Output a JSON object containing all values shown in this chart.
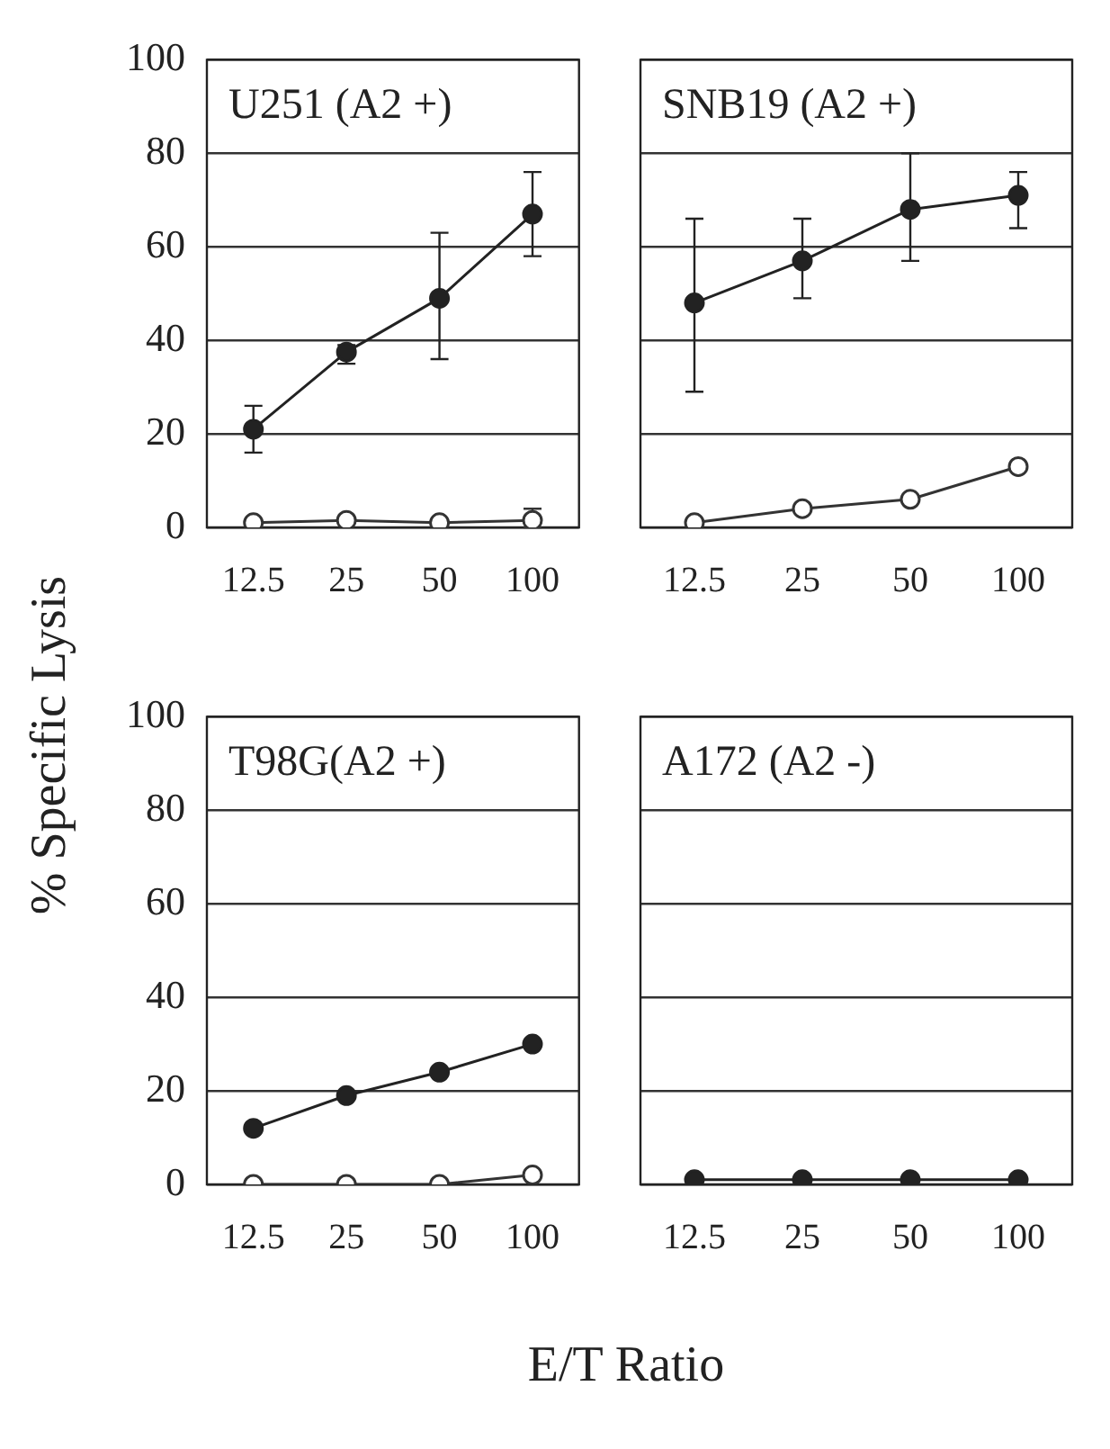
{
  "chart_data": [
    {
      "type": "line",
      "title": "U251 (A2 +)",
      "ylabel": "% Specific Lysis",
      "categories": [
        "12.5",
        "25",
        "50",
        "100"
      ],
      "ylim": [
        0,
        100
      ],
      "yticks": [
        0,
        20,
        40,
        60,
        80,
        100
      ],
      "grid": "y",
      "legend": false,
      "marker": "circle",
      "line_style": "solid",
      "series": [
        {
          "color": "#222222",
          "values": [
            21,
            37.5,
            49,
            67
          ],
          "errors": [
            [
              16,
              26
            ],
            [
              35,
              39
            ],
            [
              36,
              63
            ],
            [
              58,
              76
            ]
          ]
        },
        {
          "color": "#333333",
          "values": [
            1,
            1.5,
            1,
            1.5
          ],
          "errors": [
            null,
            null,
            null,
            [
              0,
              4
            ]
          ]
        }
      ]
    },
    {
      "type": "line",
      "title": "SNB19 (A2 +)",
      "categories": [
        "12.5",
        "25",
        "50",
        "100"
      ],
      "ylim": [
        0,
        100
      ],
      "yticks": [
        0,
        20,
        40,
        60,
        80,
        100
      ],
      "grid": "y",
      "legend": false,
      "marker": "circle",
      "line_style": "solid",
      "tick_labels": "x",
      "series": [
        {
          "color": "#222222",
          "values": [
            48,
            57,
            68,
            71
          ],
          "errors": [
            [
              29,
              66
            ],
            [
              49,
              66
            ],
            [
              57,
              80
            ],
            [
              64,
              76
            ]
          ]
        },
        {
          "color": "#333333",
          "values": [
            1,
            4,
            6,
            13
          ]
        }
      ]
    },
    {
      "type": "line",
      "title": "T98G(A2 +)",
      "xlabel": "E/T Ratio",
      "categories": [
        "12.5",
        "25",
        "50",
        "100"
      ],
      "ylim": [
        0,
        100
      ],
      "yticks": [
        0,
        20,
        40,
        60,
        80,
        100
      ],
      "grid": "y",
      "legend": false,
      "marker": "circle",
      "line_style": "solid",
      "series": [
        {
          "color": "#222222",
          "values": [
            12,
            19,
            24,
            30
          ]
        },
        {
          "color": "#333333",
          "values": [
            0,
            0,
            0,
            2
          ]
        }
      ]
    },
    {
      "type": "line",
      "title": "A172 (A2 -)",
      "categories": [
        "12.5",
        "25",
        "50",
        "100"
      ],
      "ylim": [
        0,
        100
      ],
      "yticks": [
        0,
        20,
        40,
        60,
        80,
        100
      ],
      "grid": "y",
      "legend": false,
      "marker": "circle",
      "line_style": "solid",
      "tick_labels": "x",
      "series": [
        {
          "color": "#222222",
          "values": [
            1,
            1,
            1,
            1
          ]
        }
      ]
    }
  ]
}
